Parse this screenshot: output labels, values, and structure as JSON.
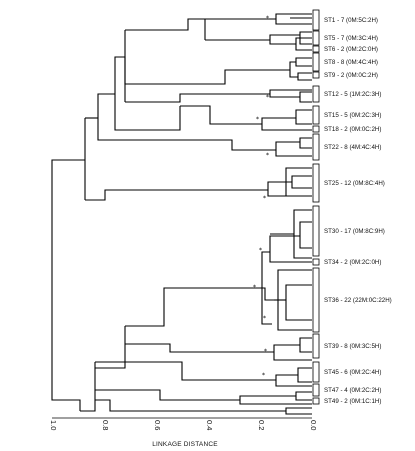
{
  "axis": {
    "label": "LINKAGE DISTANCE",
    "ticks": [
      "1.0",
      "0.8",
      "0.6",
      "0.4",
      "0.2",
      "0.0"
    ]
  },
  "clusters": [
    "ST1 - 7 (0M:5C:2H)",
    "ST5 - 7 (0M:3C:4H)",
    "ST6 - 2 (0M:2C:0H)",
    "ST8 - 8 (0M:4C:4H)",
    "ST9 - 2 (0M:0C:2H)",
    "ST12 - 5 (1M:2C:3H)",
    "ST15 - 5 (0M:2C:3H)",
    "ST18 - 2 (0M:0C:2H)",
    "ST22 - 8 (4M:4C:4H)",
    "ST25 - 12 (0M:8C:4H)",
    "ST30 - 17 (0M:8C:9H)",
    "ST34 - 2 (0M:2C:0H)",
    "ST36 - 22 (22M:0C:22H)",
    "ST39 - 8 (0M:3C:5H)",
    "ST45 - 6 (0M:2C:4H)",
    "ST47 - 4 (0M:2C:2H)",
    "ST49 - 2 (0M:1C:1H)"
  ],
  "marker": "*"
}
